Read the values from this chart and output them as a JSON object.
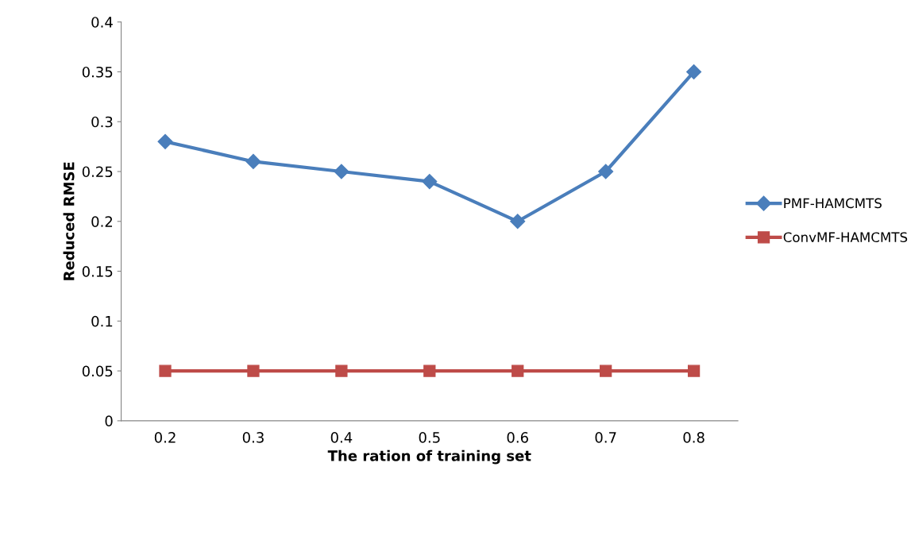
{
  "chart_data": {
    "type": "line",
    "xlabel": "The ration of training set",
    "ylabel": "Reduced RMSE",
    "categories": [
      "0.2",
      "0.3",
      "0.4",
      "0.5",
      "0.6",
      "0.7",
      "0.8"
    ],
    "series": [
      {
        "name": "PMF-HAMCMTS",
        "color": "#4a7ebb",
        "marker": "diamond",
        "values": [
          0.28,
          0.26,
          0.25,
          0.24,
          0.2,
          0.25,
          0.35
        ]
      },
      {
        "name": "ConvMF-HAMCMTS",
        "color": "#be4b48",
        "marker": "square",
        "values": [
          0.05,
          0.05,
          0.05,
          0.05,
          0.05,
          0.05,
          0.05
        ]
      }
    ],
    "ylim": [
      0,
      0.4
    ],
    "yticks": [
      0,
      0.05,
      0.1,
      0.15,
      0.2,
      0.25,
      0.3,
      0.35,
      0.4
    ],
    "grid": false,
    "legend": "right",
    "line_style": "solid"
  }
}
